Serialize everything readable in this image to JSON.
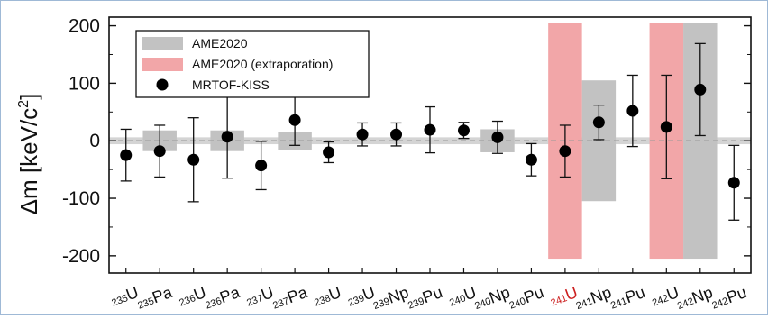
{
  "chart_data": {
    "type": "scatter",
    "ylabel": "Δm [keV/c²]",
    "ylabel_parts": {
      "main": "Δm [keV/c",
      "sup": "2",
      "close": "]"
    },
    "ylim": [
      -230,
      215
    ],
    "yticks": [
      -200,
      -100,
      0,
      100,
      200
    ],
    "zero_line": "dashed",
    "legend": {
      "placement": "top-left",
      "entries": [
        {
          "label": "AME2020",
          "swatch": "bar",
          "color": "#c2c2c2"
        },
        {
          "label": "AME2020 (extraporation)",
          "swatch": "bar",
          "color": "#f2a6a8"
        },
        {
          "label": "MRTOF-KISS",
          "swatch": "marker",
          "color": "#000000"
        }
      ]
    },
    "categories": [
      {
        "mass": "235",
        "el": "U",
        "color": "#111111"
      },
      {
        "mass": "235",
        "el": "Pa",
        "color": "#111111"
      },
      {
        "mass": "236",
        "el": "U",
        "color": "#111111"
      },
      {
        "mass": "236",
        "el": "Pa",
        "color": "#111111"
      },
      {
        "mass": "237",
        "el": "U",
        "color": "#111111"
      },
      {
        "mass": "237",
        "el": "Pa",
        "color": "#111111"
      },
      {
        "mass": "238",
        "el": "U",
        "color": "#111111"
      },
      {
        "mass": "239",
        "el": "U",
        "color": "#111111"
      },
      {
        "mass": "239",
        "el": "Np",
        "color": "#111111"
      },
      {
        "mass": "239",
        "el": "Pu",
        "color": "#111111"
      },
      {
        "mass": "240",
        "el": "U",
        "color": "#111111"
      },
      {
        "mass": "240",
        "el": "Np",
        "color": "#111111"
      },
      {
        "mass": "240",
        "el": "Pu",
        "color": "#111111"
      },
      {
        "mass": "241",
        "el": "U",
        "color": "#cc1f1f"
      },
      {
        "mass": "241",
        "el": "Np",
        "color": "#111111"
      },
      {
        "mass": "241",
        "el": "Pu",
        "color": "#111111"
      },
      {
        "mass": "242",
        "el": "U",
        "color": "#111111"
      },
      {
        "mass": "242",
        "el": "Np",
        "color": "#111111"
      },
      {
        "mass": "242",
        "el": "Pu",
        "color": "#111111"
      }
    ],
    "series": [
      {
        "name": "MRTOF-KISS",
        "values": [
          -25,
          -18,
          -33,
          7,
          -43,
          36,
          -20,
          11,
          11,
          19,
          18,
          6,
          -33,
          -18,
          32,
          52,
          24,
          89,
          -73
        ],
        "err_low": [
          45,
          45,
          73,
          72,
          42,
          44,
          18,
          20,
          20,
          40,
          14,
          28,
          28,
          45,
          30,
          62,
          90,
          80,
          65
        ],
        "err_high": [
          45,
          45,
          73,
          72,
          42,
          44,
          18,
          20,
          20,
          40,
          14,
          28,
          28,
          45,
          30,
          62,
          90,
          80,
          65
        ]
      },
      {
        "name": "AME2020",
        "bars": [
          {
            "index": 1,
            "low": -18,
            "high": 18
          },
          {
            "index": 3,
            "low": -18,
            "high": 18
          },
          {
            "index": 5,
            "low": -16,
            "high": 16
          },
          {
            "index": 11,
            "low": -20,
            "high": 20
          },
          {
            "index": 14,
            "low": -105,
            "high": 105
          },
          {
            "index": 17,
            "low": -205,
            "high": 205
          }
        ],
        "thin_band": [
          -6,
          6
        ]
      },
      {
        "name": "AME2020 (extraporation)",
        "bars": [
          {
            "index": 13,
            "low": -205,
            "high": 205
          },
          {
            "index": 16,
            "low": -205,
            "high": 205
          }
        ]
      }
    ]
  }
}
